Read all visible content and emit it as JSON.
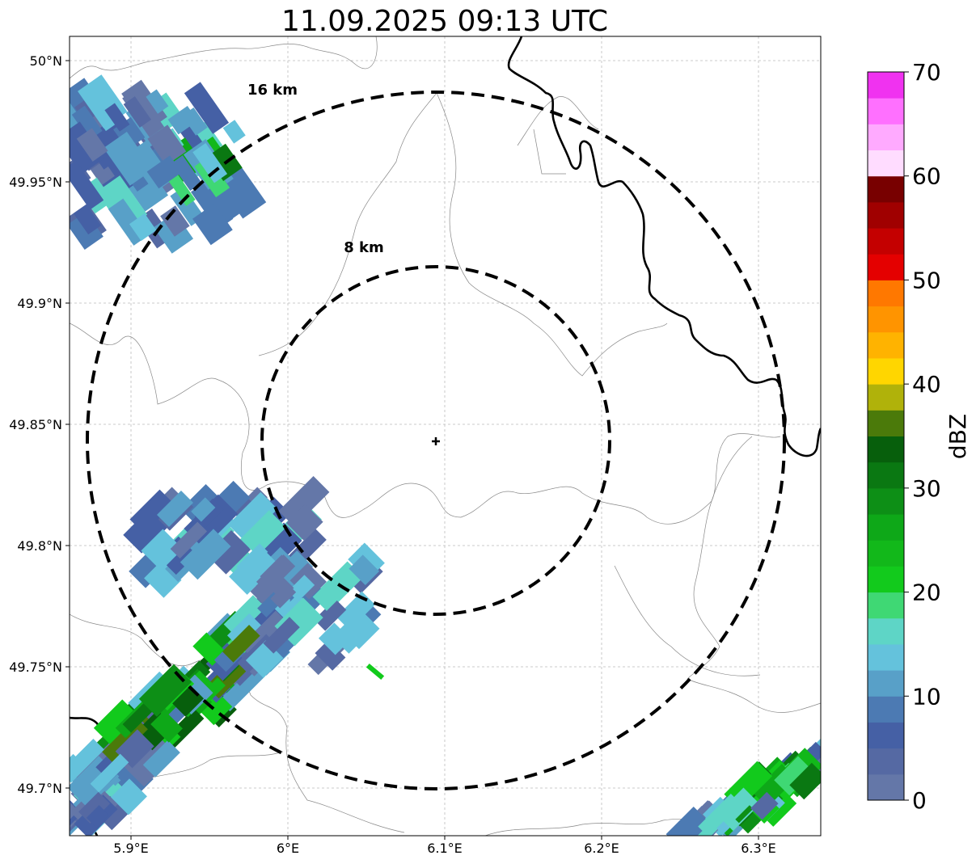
{
  "title": "11.09.2025 09:13 UTC",
  "axes": {
    "lon_ticks": [
      "5.9°E",
      "6°E",
      "6.1°E",
      "6.2°E",
      "6.3°E"
    ],
    "lat_ticks": [
      "50°N",
      "49.95°N",
      "49.9°N",
      "49.85°N",
      "49.8°N",
      "49.75°N",
      "49.7°N"
    ],
    "lon_values": [
      5.9,
      6.0,
      6.1,
      6.2,
      6.3
    ],
    "lat_values": [
      50.0,
      49.95,
      49.9,
      49.85,
      49.8,
      49.75,
      49.7
    ]
  },
  "rings": [
    {
      "label": "16 km",
      "radius_km": 16
    },
    {
      "label": "8 km",
      "radius_km": 8
    }
  ],
  "radar_center": {
    "lon": 6.095,
    "lat": 49.843,
    "marker": "plus-marker"
  },
  "colorbar": {
    "label": "dBZ",
    "ticks": [
      "0",
      "10",
      "20",
      "30",
      "40",
      "50",
      "60",
      "70"
    ],
    "min": 0,
    "max": 70,
    "step": 2.5,
    "colors": [
      "#6477a8",
      "#5569a3",
      "#4560a5",
      "#4c7ab3",
      "#58a0c8",
      "#64c2dc",
      "#5ed5c6",
      "#3fd874",
      "#12ca1c",
      "#12b81a",
      "#0ea818",
      "#0d8f16",
      "#0a7812",
      "#075f0c",
      "#4b7a0a",
      "#b0b20a",
      "#ffd600",
      "#ffb300",
      "#ff9400",
      "#ff7800",
      "#e40000",
      "#c40000",
      "#a00000",
      "#780000",
      "#ffdcff",
      "#ffaaff",
      "#ff70ff",
      "#f032f0"
    ]
  },
  "radar_echoes": [
    {
      "name": "northwest-cell",
      "color_index_range": [
        0,
        12
      ]
    },
    {
      "name": "west-central-cell",
      "color_index_range": [
        0,
        7
      ]
    },
    {
      "name": "southwest-cell",
      "color_index_range": [
        0,
        14
      ]
    },
    {
      "name": "southeast-cell",
      "color_index_range": [
        0,
        12
      ]
    }
  ]
}
